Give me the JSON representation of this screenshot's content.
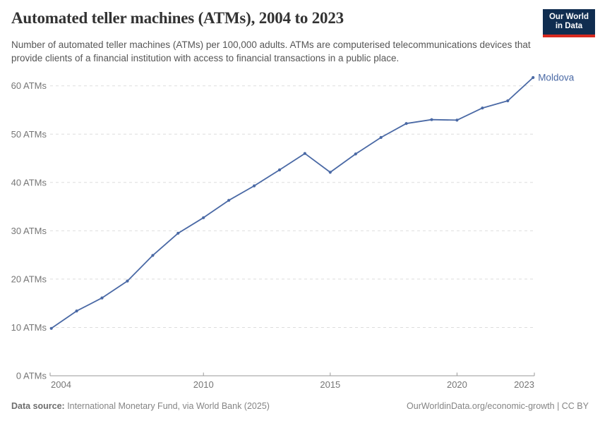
{
  "header": {
    "title": "Automated teller machines (ATMs), 2004 to 2023",
    "subtitle": "Number of automated teller machines (ATMs) per 100,000 adults. ATMs are computerised telecommunications devices that provide clients of a financial institution with access to financial transactions in a public place.",
    "logo": {
      "line1": "Our World",
      "line2": "in Data",
      "bg_color": "#102d50",
      "bar_color": "#d8291f"
    }
  },
  "chart_data": {
    "type": "line",
    "title": "Automated teller machines (ATMs), 2004 to 2023",
    "xlabel": "",
    "ylabel": "",
    "x": [
      2004,
      2005,
      2006,
      2007,
      2008,
      2009,
      2010,
      2011,
      2012,
      2013,
      2014,
      2015,
      2016,
      2017,
      2018,
      2019,
      2020,
      2021,
      2022,
      2023
    ],
    "series": [
      {
        "name": "Moldova",
        "color": "#4a69a5",
        "values": [
          9.8,
          13.4,
          16.1,
          19.6,
          24.9,
          29.5,
          32.7,
          36.3,
          39.3,
          42.6,
          46.0,
          42.1,
          45.9,
          49.3,
          52.2,
          53.0,
          52.9,
          55.4,
          56.9,
          61.7
        ]
      }
    ],
    "xlim": [
      2004,
      2023
    ],
    "ylim": [
      0,
      63
    ],
    "x_ticks": [
      2004,
      2010,
      2015,
      2020,
      2023
    ],
    "y_ticks": [
      0,
      10,
      20,
      30,
      40,
      50,
      60
    ],
    "y_tick_suffix": " ATMs",
    "grid": "horizontal-dashed",
    "legend_position": "end-of-line-label"
  },
  "colors": {
    "line": "#4a69a5",
    "grid": "#dddddd",
    "axis": "#9a9a9a",
    "tick_label": "#767676",
    "series_label": "#4a69a5"
  },
  "footer": {
    "data_source_label": "Data source:",
    "data_source_value": " International Monetary Fund, via World Bank (2025)",
    "attribution": "OurWorldinData.org/economic-growth | CC BY"
  }
}
